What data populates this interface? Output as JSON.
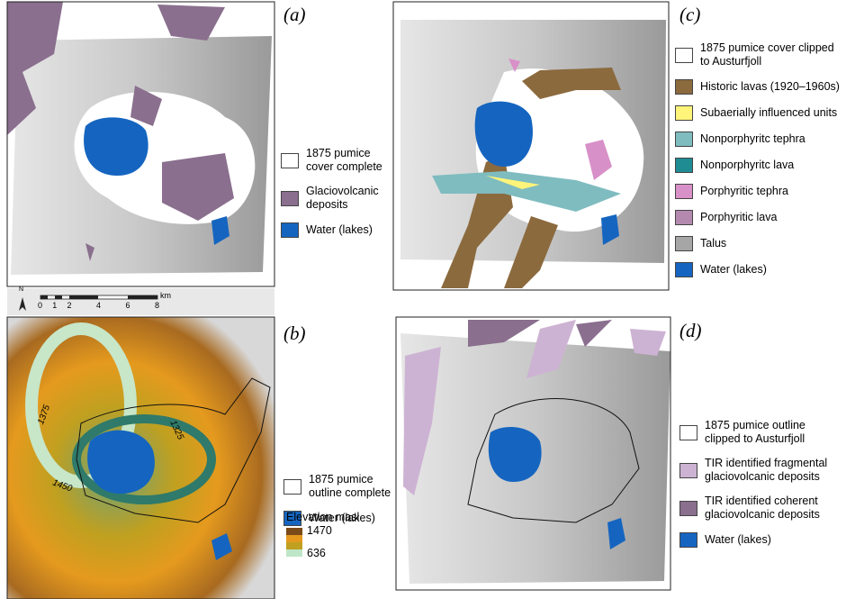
{
  "panels": [
    {
      "label": "(a)",
      "legend": [
        {
          "text": "1875 pumice cover complete",
          "color": "#ffffff"
        },
        {
          "text": "Glaciovolcanic deposits",
          "color": "#8a6f8e"
        },
        {
          "text": "Water (lakes)",
          "color": "#1565c0"
        }
      ]
    },
    {
      "label": "(b)",
      "legend": [
        {
          "text": "1875 pumice outline complete",
          "color": "#ffffff"
        },
        {
          "text": "Water (lakes)",
          "color": "#1565c0"
        }
      ],
      "elevation": {
        "title": "Elevation masl",
        "max": 1470,
        "min": 636
      },
      "contours": [
        "1375",
        "1325",
        "1450"
      ]
    },
    {
      "label": "(c)",
      "legend": [
        {
          "text": "1875 pumice cover clipped to Austurfjoll",
          "color": "#ffffff"
        },
        {
          "text": "Historic lavas (1920–1960s)",
          "color": "#8b6a3e"
        },
        {
          "text": "Subaerially influenced units",
          "color": "#fff47a"
        },
        {
          "text": "Nonporphyritc tephra",
          "color": "#7fbcc0"
        },
        {
          "text": "Nonporphyritc lava",
          "color": "#1f8c94"
        },
        {
          "text": "Porphyritic tephra",
          "color": "#d890c8"
        },
        {
          "text": "Porphyritic lava",
          "color": "#b489b0"
        },
        {
          "text": "Talus",
          "color": "#a6a6a6"
        },
        {
          "text": "Water (lakes)",
          "color": "#1565c0"
        }
      ]
    },
    {
      "label": "(d)",
      "legend": [
        {
          "text": "1875 pumice outline clipped to Austurfjoll",
          "color": "#ffffff"
        },
        {
          "text": "TIR identified fragmental glaciovolcanic deposits",
          "color": "#cdb3d3"
        },
        {
          "text": "TIR identified coherent glaciovolcanic deposits",
          "color": "#8a6f8e"
        },
        {
          "text": "Water (lakes)",
          "color": "#1565c0"
        }
      ]
    }
  ],
  "scale_bar": {
    "north": "N",
    "unit": "km",
    "ticks": [
      0,
      1,
      2,
      4,
      6,
      8
    ]
  }
}
